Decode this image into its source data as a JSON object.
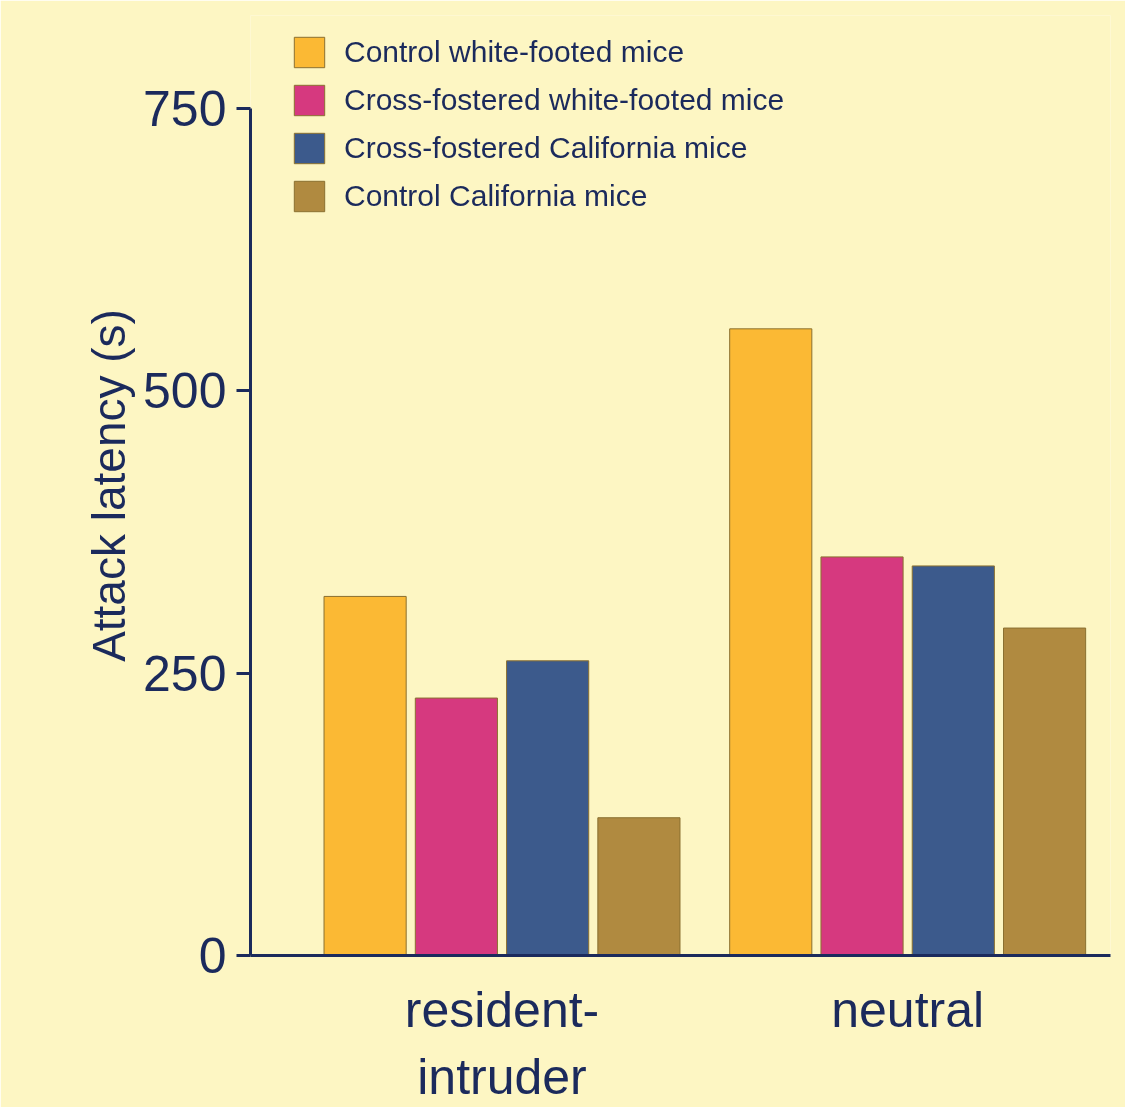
{
  "chart_data": {
    "type": "bar",
    "ylabel": "Attack latency (s)",
    "categories": [
      "resident-\nintruder",
      "neutral"
    ],
    "series": [
      {
        "name": "Control white-footed mice",
        "color": "#fbb934",
        "values": [
          318,
          555
        ]
      },
      {
        "name": "Cross-fostered white-footed mice",
        "color": "#d6397f",
        "values": [
          228,
          353
        ]
      },
      {
        "name": "Cross-fostered California mice",
        "color": "#3c5a8c",
        "values": [
          261,
          345
        ]
      },
      {
        "name": "Control California mice",
        "color": "#b08a40",
        "values": [
          122,
          290
        ]
      }
    ],
    "ylim": [
      0,
      750
    ],
    "yticks": [
      0,
      250,
      500,
      750
    ],
    "grid": false,
    "legend": "top left"
  }
}
